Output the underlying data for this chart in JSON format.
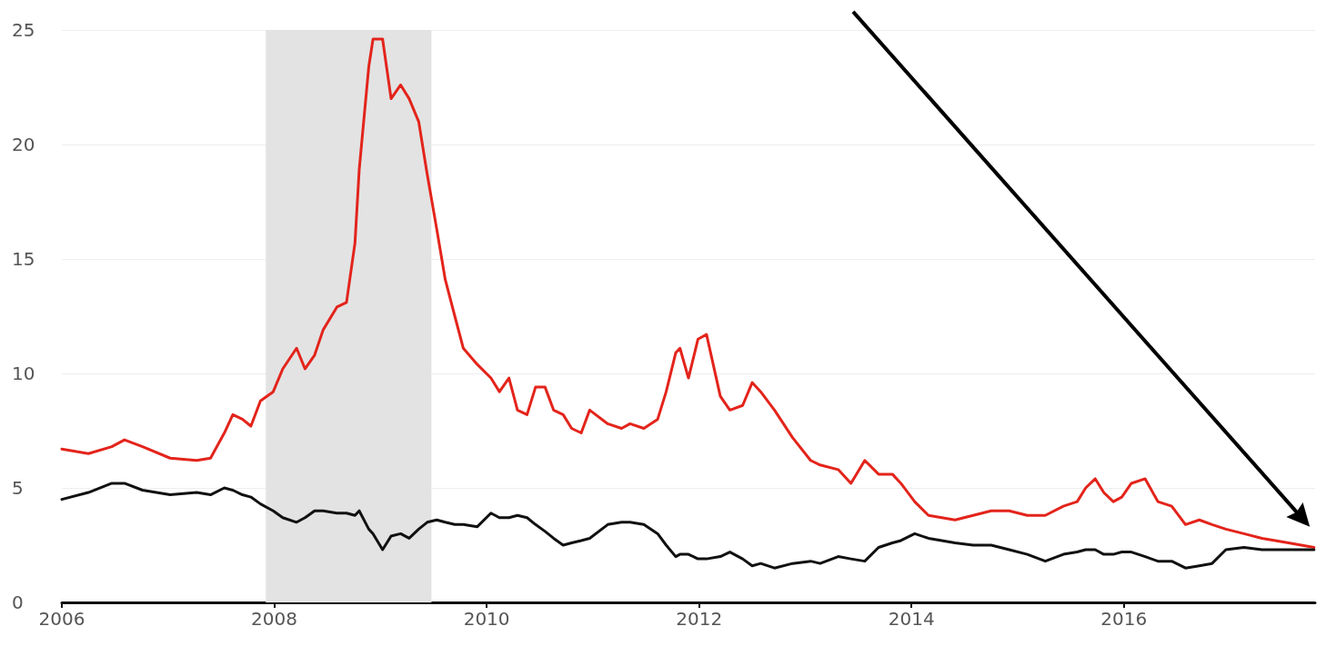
{
  "chart_data": {
    "type": "line",
    "x": [
      2006.0,
      2006.25,
      2006.47,
      2006.59,
      2006.76,
      2007.02,
      2007.27,
      2007.4,
      2007.53,
      2007.61,
      2007.7,
      2007.78,
      2007.87,
      2007.99,
      2008.08,
      2008.21,
      2008.29,
      2008.38,
      2008.46,
      2008.59,
      2008.68,
      2008.76,
      2008.8,
      2008.89,
      2008.93,
      2009.02,
      2009.1,
      2009.19,
      2009.27,
      2009.36,
      2009.44,
      2009.53,
      2009.61,
      2009.7,
      2009.78,
      2009.91,
      2010.04,
      2010.12,
      2010.21,
      2010.29,
      2010.38,
      2010.46,
      2010.55,
      2010.63,
      2010.72,
      2010.8,
      2010.89,
      2010.97,
      2011.14,
      2011.27,
      2011.35,
      2011.48,
      2011.61,
      2011.69,
      2011.78,
      2011.82,
      2011.9,
      2011.99,
      2012.07,
      2012.2,
      2012.29,
      2012.41,
      2012.5,
      2012.58,
      2012.71,
      2012.88,
      2013.05,
      2013.14,
      2013.31,
      2013.43,
      2013.56,
      2013.69,
      2013.82,
      2013.9,
      2014.03,
      2014.16,
      2014.41,
      2014.58,
      2014.75,
      2014.92,
      2015.09,
      2015.26,
      2015.43,
      2015.56,
      2015.64,
      2015.73,
      2015.81,
      2015.9,
      2015.98,
      2016.07,
      2016.2,
      2016.32,
      2016.45,
      2016.58,
      2016.71,
      2016.83,
      2016.96,
      2017.13,
      2017.3,
      2017.55,
      2017.79
    ],
    "series": [
      {
        "color": "#e3241b",
        "values": [
          6.7,
          6.5,
          6.8,
          7.1,
          6.8,
          6.3,
          6.2,
          6.3,
          7.4,
          8.2,
          8.0,
          7.7,
          8.8,
          9.2,
          10.2,
          11.1,
          10.2,
          10.8,
          11.9,
          12.9,
          13.1,
          15.7,
          18.9,
          23.4,
          24.6,
          24.6,
          22.0,
          22.6,
          22.0,
          21.0,
          18.7,
          16.3,
          14.1,
          12.5,
          11.1,
          10.4,
          9.8,
          9.2,
          9.8,
          8.4,
          8.2,
          9.4,
          9.4,
          8.4,
          8.2,
          7.6,
          7.4,
          8.4,
          7.8,
          7.6,
          7.8,
          7.6,
          8.0,
          9.2,
          10.9,
          11.1,
          9.8,
          11.5,
          11.7,
          9.0,
          8.4,
          8.6,
          9.6,
          9.2,
          8.4,
          7.2,
          6.2,
          6.0,
          5.8,
          5.2,
          6.2,
          5.6,
          5.6,
          5.2,
          4.4,
          3.8,
          3.6,
          3.8,
          4.0,
          4.0,
          3.8,
          3.8,
          4.2,
          4.4,
          5.0,
          5.4,
          4.8,
          4.4,
          4.6,
          5.2,
          5.4,
          4.4,
          4.2,
          3.4,
          3.6,
          3.4,
          3.2,
          3.0,
          2.8,
          2.6,
          2.4
        ]
      },
      {
        "color": "#111111",
        "values": [
          4.5,
          4.8,
          5.2,
          5.2,
          4.9,
          4.7,
          4.8,
          4.7,
          5.0,
          4.9,
          4.7,
          4.6,
          4.3,
          4.0,
          3.7,
          3.5,
          3.7,
          4.0,
          4.0,
          3.9,
          3.9,
          3.8,
          4.0,
          3.2,
          3.0,
          2.3,
          2.9,
          3.0,
          2.8,
          3.2,
          3.5,
          3.6,
          3.5,
          3.4,
          3.4,
          3.3,
          3.9,
          3.7,
          3.7,
          3.8,
          3.7,
          3.4,
          3.1,
          2.8,
          2.5,
          2.6,
          2.7,
          2.8,
          3.4,
          3.5,
          3.5,
          3.4,
          3.0,
          2.5,
          2.0,
          2.1,
          2.1,
          1.9,
          1.9,
          2.0,
          2.2,
          1.9,
          1.6,
          1.7,
          1.5,
          1.7,
          1.8,
          1.7,
          2.0,
          1.9,
          1.8,
          2.4,
          2.6,
          2.7,
          3.0,
          2.8,
          2.6,
          2.5,
          2.5,
          2.3,
          2.1,
          1.8,
          2.1,
          2.2,
          2.3,
          2.3,
          2.1,
          2.1,
          2.2,
          2.2,
          2.0,
          1.8,
          1.8,
          1.5,
          1.6,
          1.7,
          2.3,
          2.4,
          2.3,
          2.3,
          2.3
        ]
      }
    ],
    "xlim": [
      2006,
      2017.8
    ],
    "xticks": [
      2006,
      2008,
      2010,
      2012,
      2014,
      2016
    ],
    "ylim": [
      0,
      25
    ],
    "yticks": [
      0,
      5,
      10,
      15,
      20,
      25
    ],
    "bands": [
      {
        "axis": "x",
        "from": 2007.92,
        "to": 2009.48,
        "color": "#e3e3e3"
      }
    ],
    "grid": "y",
    "marker": "none",
    "line_style": "solid"
  }
}
